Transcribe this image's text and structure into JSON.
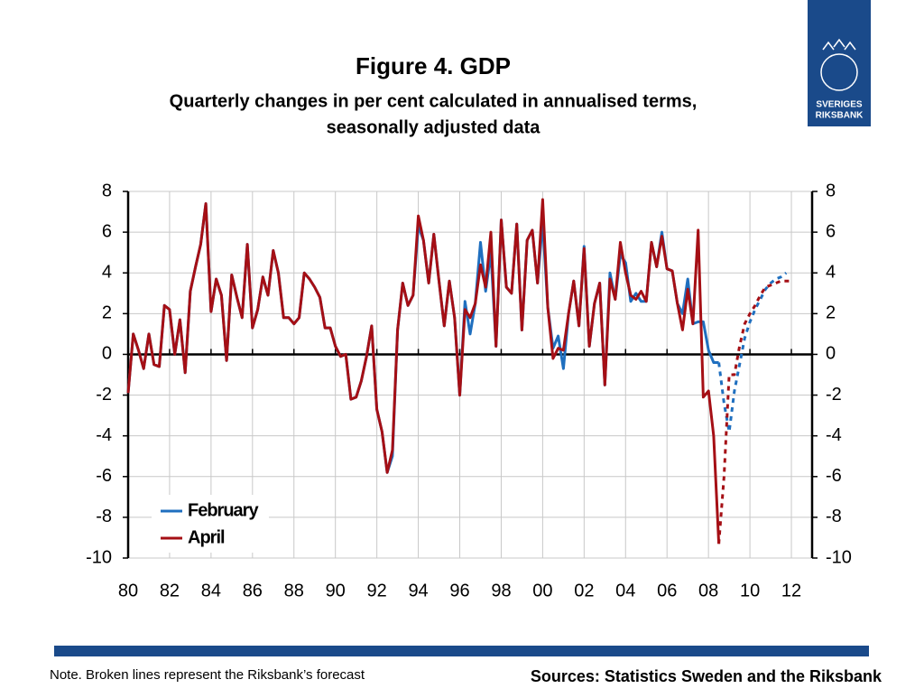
{
  "chart_data": {
    "type": "line",
    "title": "Figure 4. GDP",
    "subtitle": [
      "Quarterly changes in per cent calculated in annualised terms,",
      "seasonally adjusted data"
    ],
    "note": "Note. Broken lines represent the Riksbank’s forecast",
    "sources": "Sources: Statistics Sweden and the Riksbank",
    "logo": [
      "SVERIGES",
      "RIKSBANK"
    ],
    "x": [
      1980,
      1980.25,
      1980.5,
      1980.75,
      1981,
      1981.25,
      1981.5,
      1981.75,
      1982,
      1982.25,
      1982.5,
      1982.75,
      1983,
      1983.25,
      1983.5,
      1983.75,
      1984,
      1984.25,
      1984.5,
      1984.75,
      1985,
      1985.25,
      1985.5,
      1985.75,
      1986,
      1986.25,
      1986.5,
      1986.75,
      1987,
      1987.25,
      1987.5,
      1987.75,
      1988,
      1988.25,
      1988.5,
      1988.75,
      1989,
      1989.25,
      1989.5,
      1989.75,
      1990,
      1990.25,
      1990.5,
      1990.75,
      1991,
      1991.25,
      1991.5,
      1991.75,
      1992,
      1992.25,
      1992.5,
      1992.75,
      1993,
      1993.25,
      1993.5,
      1993.75,
      1994,
      1994.25,
      1994.5,
      1994.75,
      1995,
      1995.25,
      1995.5,
      1995.75,
      1996,
      1996.25,
      1996.5,
      1996.75,
      1997,
      1997.25,
      1997.5,
      1997.75,
      1998,
      1998.25,
      1998.5,
      1998.75,
      1999,
      1999.25,
      1999.5,
      1999.75,
      2000,
      2000.25,
      2000.5,
      2000.75,
      2001,
      2001.25,
      2001.5,
      2001.75,
      2002,
      2002.25,
      2002.5,
      2002.75,
      2003,
      2003.25,
      2003.5,
      2003.75,
      2004,
      2004.25,
      2004.5,
      2004.75,
      2005,
      2005.25,
      2005.5,
      2005.75,
      2006,
      2006.25,
      2006.5,
      2006.75,
      2007,
      2007.25,
      2007.5,
      2007.75,
      2008,
      2008.25,
      2008.5,
      2008.75,
      2009,
      2009.25,
      2009.5,
      2009.75,
      2010,
      2010.25,
      2010.5,
      2010.75,
      2011,
      2011.25,
      2011.5,
      2011.75,
      2012
    ],
    "series": [
      {
        "name": "February",
        "color": "#1f6fbf",
        "forecast_from": 2008.5,
        "values": [
          -1.9,
          1.0,
          0.2,
          -0.7,
          1.0,
          -0.5,
          -0.6,
          2.4,
          2.2,
          0.0,
          1.7,
          -0.9,
          3.1,
          4.3,
          5.4,
          7.4,
          2.1,
          3.7,
          2.9,
          -0.3,
          3.9,
          2.8,
          1.8,
          5.4,
          1.3,
          2.2,
          3.8,
          2.9,
          5.1,
          4.0,
          1.8,
          1.8,
          1.5,
          1.8,
          4.0,
          3.7,
          3.3,
          2.8,
          1.3,
          1.3,
          0.4,
          -0.1,
          0.0,
          -2.2,
          -2.1,
          -1.3,
          -0.1,
          1.4,
          -2.7,
          -3.8,
          -5.8,
          -5.0,
          1.2,
          3.5,
          2.4,
          2.9,
          6.3,
          5.6,
          3.5,
          5.9,
          3.6,
          1.4,
          3.6,
          1.8,
          -2.0,
          2.6,
          1.0,
          2.5,
          5.5,
          3.1,
          5.0,
          0.4,
          6.6,
          3.3,
          3.0,
          6.4,
          1.2,
          5.6,
          6.1,
          3.5,
          6.5,
          2.3,
          0.3,
          0.9,
          -0.7,
          2.0,
          3.6,
          1.4,
          5.3,
          0.4,
          2.5,
          3.5,
          -1.5,
          4.0,
          2.7,
          4.9,
          4.5,
          2.6,
          3.0,
          2.6,
          2.6,
          5.5,
          4.3,
          6.0,
          4.2,
          4.1,
          2.5,
          2.0,
          3.7,
          1.5,
          1.6,
          1.6,
          0.2,
          -0.4,
          -0.4,
          -2.4,
          -3.8,
          -1.8,
          -0.5,
          0.8,
          1.6,
          2.2,
          2.7,
          3.2,
          3.5,
          3.7,
          3.8,
          4.0,
          null
        ]
      },
      {
        "name": "April",
        "color": "#a50f15",
        "forecast_from": 2008.5,
        "values": [
          -1.9,
          1.0,
          0.2,
          -0.7,
          1.0,
          -0.5,
          -0.6,
          2.4,
          2.2,
          0.0,
          1.7,
          -0.9,
          3.1,
          4.3,
          5.4,
          7.4,
          2.1,
          3.7,
          2.9,
          -0.3,
          3.9,
          2.8,
          1.8,
          5.4,
          1.3,
          2.2,
          3.8,
          2.9,
          5.1,
          4.0,
          1.8,
          1.8,
          1.5,
          1.8,
          4.0,
          3.7,
          3.3,
          2.8,
          1.3,
          1.3,
          0.4,
          -0.1,
          0.0,
          -2.2,
          -2.1,
          -1.3,
          -0.1,
          1.4,
          -2.7,
          -3.8,
          -5.8,
          -4.7,
          1.2,
          3.5,
          2.4,
          2.9,
          6.8,
          5.6,
          3.5,
          5.9,
          3.6,
          1.4,
          3.6,
          1.8,
          -2.0,
          2.2,
          1.8,
          2.5,
          4.4,
          3.3,
          6.0,
          0.4,
          6.6,
          3.3,
          3.0,
          6.4,
          1.2,
          5.6,
          6.1,
          3.5,
          7.6,
          2.3,
          -0.2,
          0.3,
          0.2,
          2.0,
          3.6,
          1.4,
          5.2,
          0.4,
          2.5,
          3.5,
          -1.5,
          3.7,
          2.7,
          5.5,
          4.0,
          2.9,
          2.7,
          3.1,
          2.6,
          5.5,
          4.3,
          5.8,
          4.2,
          4.1,
          2.5,
          1.2,
          3.2,
          1.5,
          6.1,
          -2.1,
          -1.8,
          -4.0,
          -9.3,
          -6.0,
          -1.0,
          -1.0,
          0.4,
          1.5,
          2.0,
          2.4,
          2.9,
          3.3,
          3.4,
          3.5,
          3.6,
          3.6,
          3.6
        ]
      }
    ],
    "xlim": [
      1980,
      2013
    ],
    "xticks": [
      {
        "value": 1980,
        "label": "80"
      },
      {
        "value": 1982,
        "label": "82"
      },
      {
        "value": 1984,
        "label": "84"
      },
      {
        "value": 1986,
        "label": "86"
      },
      {
        "value": 1988,
        "label": "88"
      },
      {
        "value": 1990,
        "label": "90"
      },
      {
        "value": 1992,
        "label": "92"
      },
      {
        "value": 1994,
        "label": "94"
      },
      {
        "value": 1996,
        "label": "96"
      },
      {
        "value": 1998,
        "label": "98"
      },
      {
        "value": 2000,
        "label": "00"
      },
      {
        "value": 2002,
        "label": "02"
      },
      {
        "value": 2004,
        "label": "04"
      },
      {
        "value": 2006,
        "label": "06"
      },
      {
        "value": 2008,
        "label": "08"
      },
      {
        "value": 2010,
        "label": "10"
      },
      {
        "value": 2012,
        "label": "12"
      }
    ],
    "ylim": [
      -10,
      8
    ],
    "yticks": [
      -10,
      -8,
      -6,
      -4,
      -2,
      0,
      2,
      4,
      6,
      8
    ],
    "y2lim": [
      -10,
      8
    ],
    "y2ticks": [
      -10,
      -8,
      -6,
      -4,
      -2,
      0,
      2,
      4,
      6,
      8
    ],
    "grid": true,
    "legend": "lower left"
  }
}
